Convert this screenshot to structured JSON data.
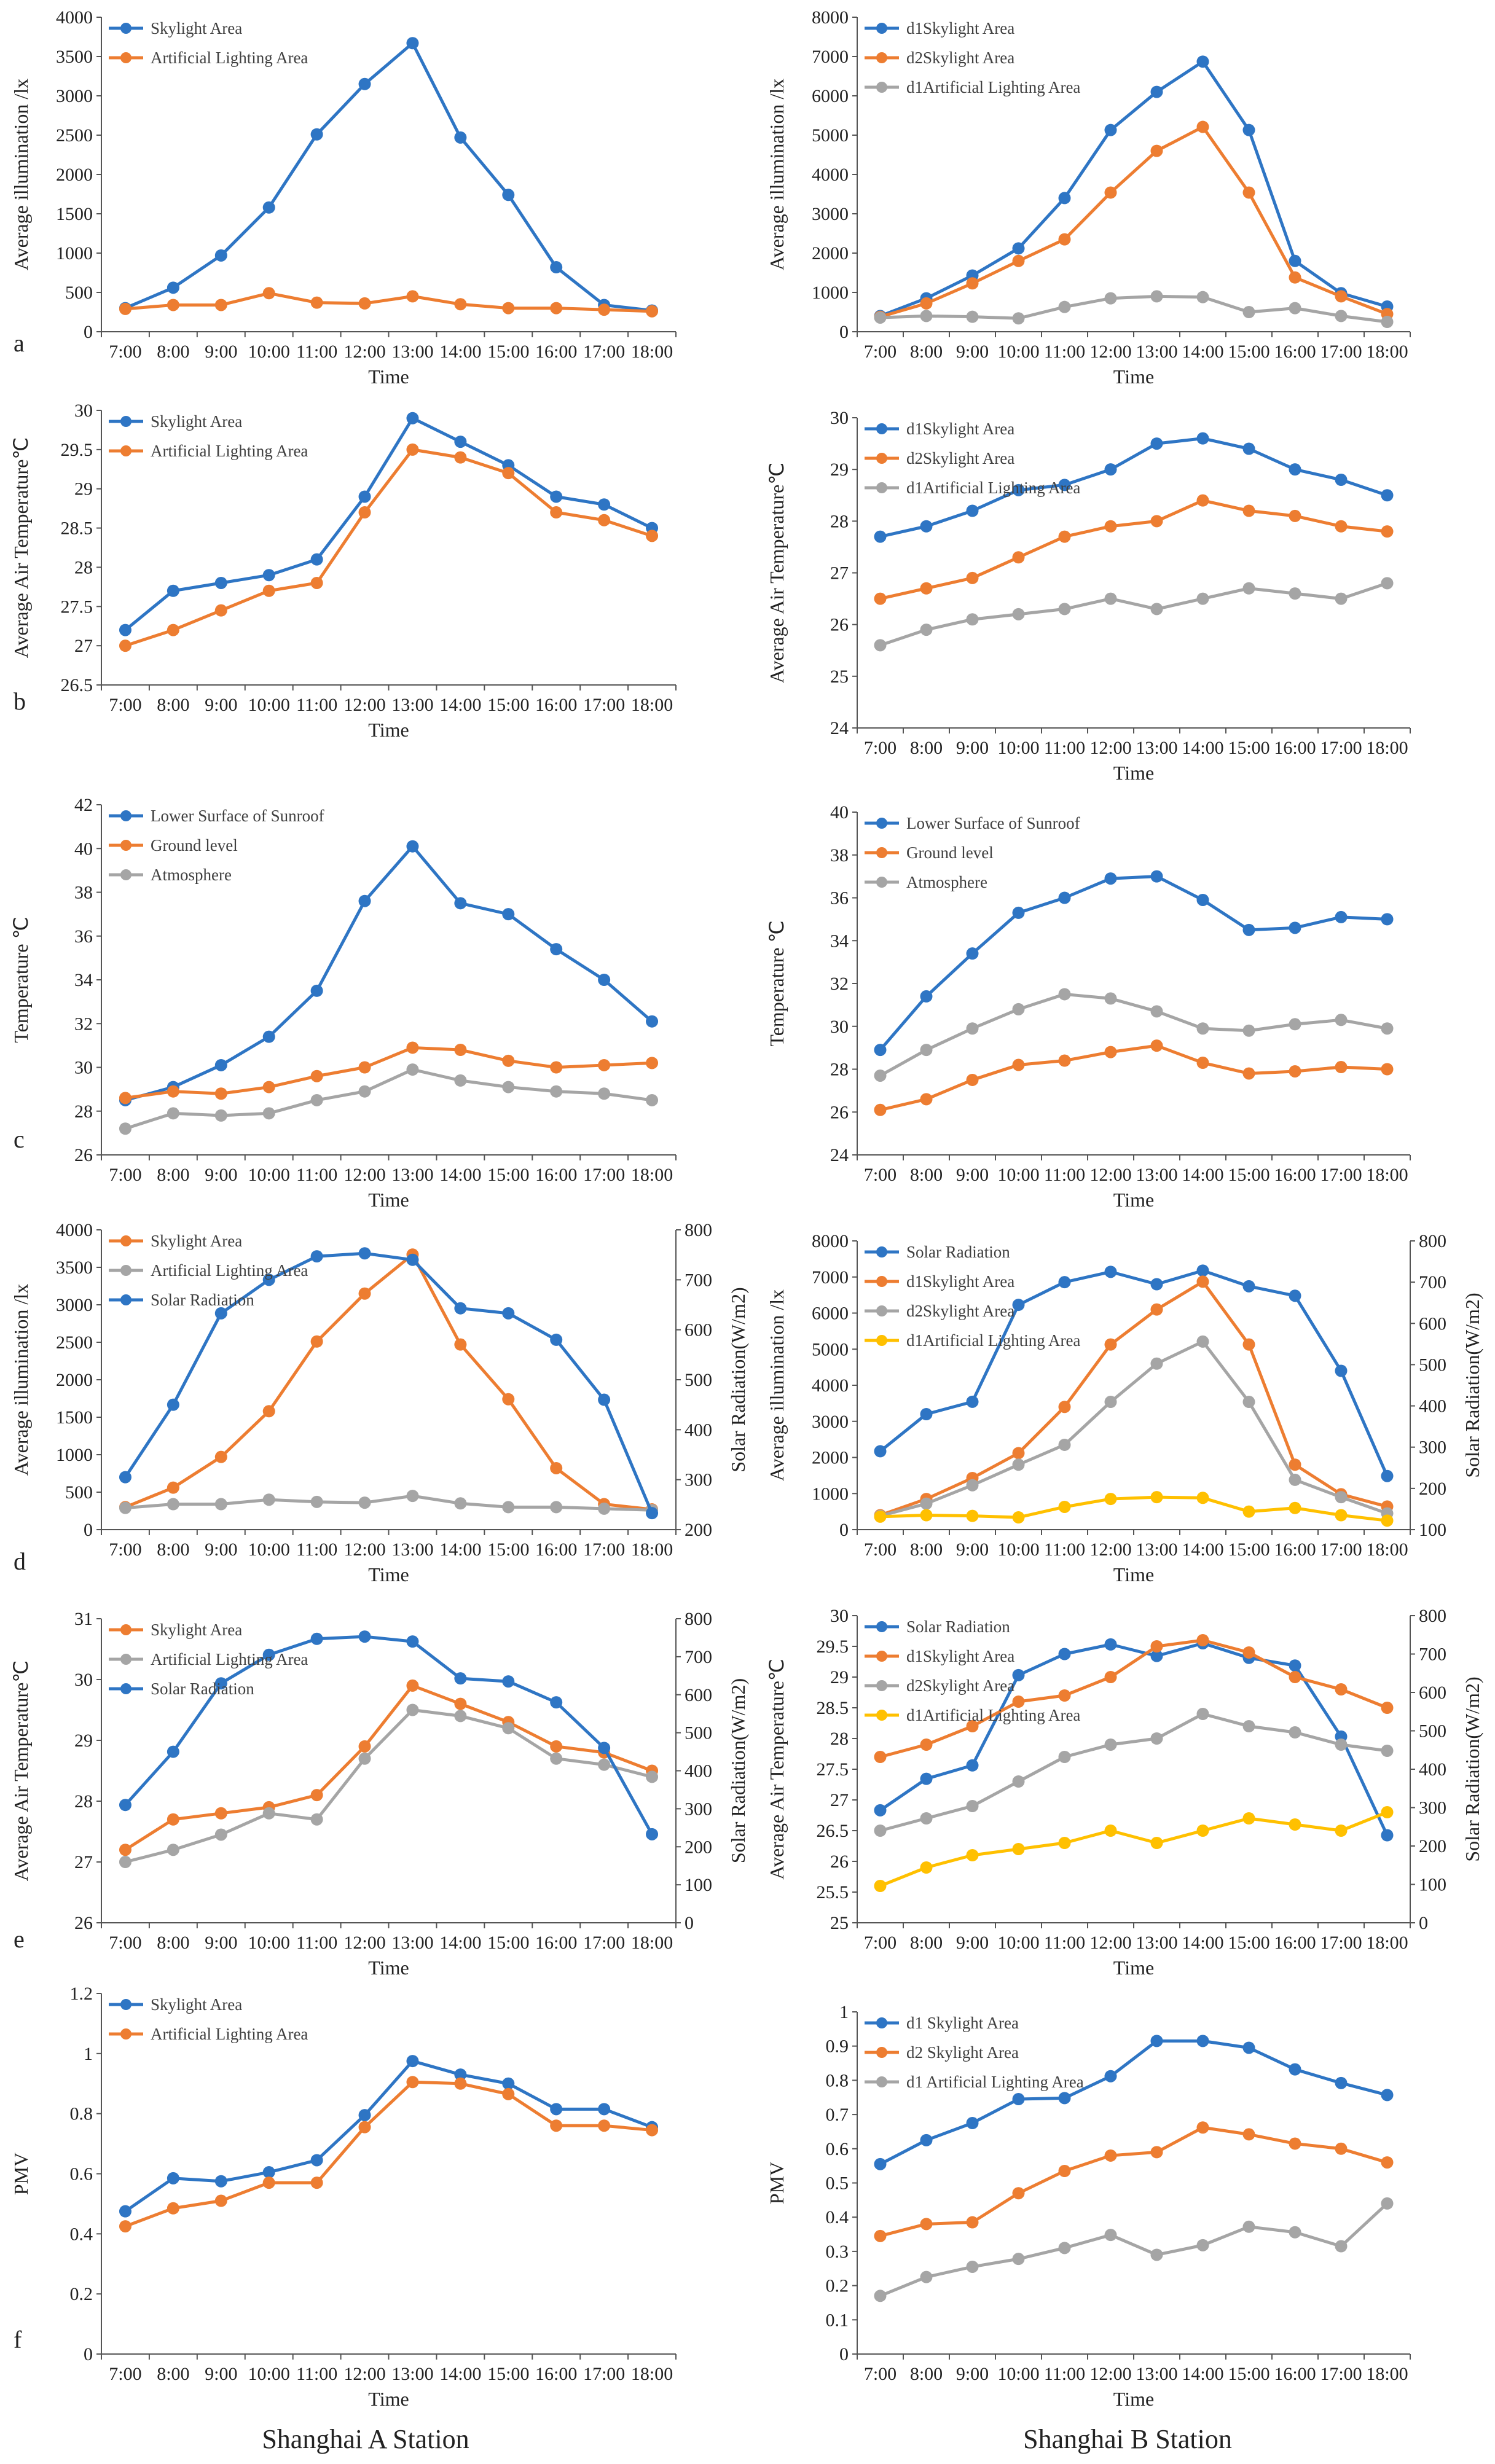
{
  "figure": {
    "captions": {
      "left": "Shanghai A Station",
      "right": "Shanghai B Station"
    },
    "x_categories": [
      "7:00",
      "8:00",
      "9:00",
      "10:00",
      "11:00",
      "12:00",
      "13:00",
      "14:00",
      "15:00",
      "16:00",
      "17:00",
      "18:00"
    ],
    "colors": {
      "blue": "#2E75C4",
      "orange": "#ED7D31",
      "gray": "#A5A5A5",
      "yellow": "#FFC000"
    }
  },
  "chart_data": [
    {
      "id": "a-left",
      "panel_letter": "a",
      "type": "line",
      "xlabel": "Time",
      "ylabel": "Average illumination /lx",
      "ylim": [
        0,
        4000
      ],
      "yticks": [
        0,
        500,
        1000,
        1500,
        2000,
        2500,
        3000,
        3500,
        4000
      ],
      "legend_position": "top-left",
      "series": [
        {
          "name": "Skylight Area",
          "color": "blue",
          "values": [
            300,
            560,
            970,
            1580,
            2510,
            3150,
            3670,
            2470,
            1740,
            820,
            340,
            270
          ]
        },
        {
          "name": "Artificial Lighting Area",
          "color": "orange",
          "values": [
            290,
            340,
            340,
            490,
            370,
            360,
            450,
            350,
            300,
            300,
            280,
            260
          ]
        }
      ]
    },
    {
      "id": "a-right",
      "type": "line",
      "xlabel": "Time",
      "ylabel": "Average illumination /lx",
      "ylim": [
        0,
        8000
      ],
      "yticks": [
        0,
        1000,
        2000,
        3000,
        4000,
        5000,
        6000,
        7000,
        8000
      ],
      "legend_position": "top-left",
      "series": [
        {
          "name": "d1Skylight Area",
          "color": "blue",
          "values": [
            400,
            850,
            1430,
            2120,
            3400,
            5130,
            6100,
            6870,
            5130,
            1800,
            980,
            640
          ]
        },
        {
          "name": "d2Skylight Area",
          "color": "orange",
          "values": [
            380,
            720,
            1230,
            1800,
            2350,
            3540,
            4600,
            5210,
            3540,
            1380,
            900,
            450
          ]
        },
        {
          "name": "d1Artificial Lighting Area",
          "color": "gray",
          "values": [
            360,
            400,
            380,
            340,
            630,
            850,
            900,
            880,
            500,
            600,
            400,
            250
          ]
        }
      ]
    },
    {
      "id": "b-left",
      "panel_letter": "b",
      "type": "line",
      "xlabel": "Time",
      "ylabel": "Average Air Temperature℃",
      "ylim": [
        26.5,
        30
      ],
      "yticks": [
        26.5,
        27,
        27.5,
        28,
        28.5,
        29,
        29.5,
        30
      ],
      "legend_position": "top-left",
      "series": [
        {
          "name": "Skylight Area",
          "color": "blue",
          "values": [
            27.2,
            27.7,
            27.8,
            27.9,
            28.1,
            28.9,
            29.9,
            29.6,
            29.3,
            28.9,
            28.8,
            28.5
          ]
        },
        {
          "name": "Artificial Lighting Area",
          "color": "orange",
          "values": [
            27.0,
            27.2,
            27.45,
            27.7,
            27.8,
            28.7,
            29.5,
            29.4,
            29.2,
            28.7,
            28.6,
            28.4
          ]
        }
      ]
    },
    {
      "id": "b-right",
      "type": "line",
      "xlabel": "Time",
      "ylabel": "Average Air Temperature℃",
      "ylim": [
        24,
        30
      ],
      "yticks": [
        24,
        25,
        26,
        27,
        28,
        29,
        30
      ],
      "legend_position": "top-left",
      "series": [
        {
          "name": "d1Skylight Area",
          "color": "blue",
          "values": [
            27.7,
            27.9,
            28.2,
            28.6,
            28.7,
            29.0,
            29.5,
            29.6,
            29.4,
            29.0,
            28.8,
            28.5
          ]
        },
        {
          "name": "d2Skylight Area",
          "color": "orange",
          "values": [
            26.5,
            26.7,
            26.9,
            27.3,
            27.7,
            27.9,
            28.0,
            28.4,
            28.2,
            28.1,
            27.9,
            27.8
          ]
        },
        {
          "name": "d1Artificial Lighting Area",
          "color": "gray",
          "values": [
            25.6,
            25.9,
            26.1,
            26.2,
            26.3,
            26.5,
            26.3,
            26.5,
            26.7,
            26.6,
            26.5,
            26.8
          ]
        }
      ]
    },
    {
      "id": "c-left",
      "panel_letter": "c",
      "type": "line",
      "xlabel": "Time",
      "ylabel": "Temperature ℃",
      "ylim": [
        26,
        42
      ],
      "yticks": [
        26,
        28,
        30,
        32,
        34,
        36,
        38,
        40,
        42
      ],
      "legend_position": "top-left",
      "series": [
        {
          "name": "Lower Surface of Sunroof",
          "color": "blue",
          "values": [
            28.5,
            29.1,
            30.1,
            31.4,
            33.5,
            37.6,
            40.1,
            37.5,
            37.0,
            35.4,
            34.0,
            32.1
          ]
        },
        {
          "name": "Ground level",
          "color": "orange",
          "values": [
            28.6,
            28.9,
            28.8,
            29.1,
            29.6,
            30.0,
            30.9,
            30.8,
            30.3,
            30.0,
            30.1,
            30.2
          ]
        },
        {
          "name": "Atmosphere",
          "color": "gray",
          "values": [
            27.2,
            27.9,
            27.8,
            27.9,
            28.5,
            28.9,
            29.9,
            29.4,
            29.1,
            28.9,
            28.8,
            28.5
          ]
        }
      ]
    },
    {
      "id": "c-right",
      "type": "line",
      "xlabel": "Time",
      "ylabel": "Temperature ℃",
      "ylim": [
        24,
        40
      ],
      "yticks": [
        24,
        26,
        28,
        30,
        32,
        34,
        36,
        38,
        40
      ],
      "legend_position": "top-left",
      "series": [
        {
          "name": "Lower Surface of Sunroof",
          "color": "blue",
          "values": [
            28.9,
            31.4,
            33.4,
            35.3,
            36.0,
            36.9,
            37.0,
            35.9,
            34.5,
            34.6,
            35.1,
            35.0
          ]
        },
        {
          "name": "Ground level",
          "color": "orange",
          "values": [
            26.1,
            26.6,
            27.5,
            28.2,
            28.4,
            28.8,
            29.1,
            28.3,
            27.8,
            27.9,
            28.1,
            28.0
          ]
        },
        {
          "name": "Atmosphere",
          "color": "gray",
          "values": [
            27.7,
            28.9,
            29.9,
            30.8,
            31.5,
            31.3,
            30.7,
            29.9,
            29.8,
            30.1,
            30.3,
            29.9
          ]
        }
      ]
    },
    {
      "id": "d-left",
      "panel_letter": "d",
      "type": "line",
      "xlabel": "Time",
      "ylabel": "Average illumination /lx",
      "y2label": "Solar Radiation(W/m2)",
      "ylim": [
        0,
        4000
      ],
      "yticks": [
        0,
        500,
        1000,
        1500,
        2000,
        2500,
        3000,
        3500,
        4000
      ],
      "y2lim": [
        200,
        800
      ],
      "y2ticks": [
        200,
        300,
        400,
        500,
        600,
        700,
        800
      ],
      "legend_position": "top-left",
      "series": [
        {
          "name": "Skylight Area",
          "color": "orange",
          "axis": "left",
          "values": [
            300,
            560,
            970,
            1580,
            2510,
            3150,
            3670,
            2470,
            1740,
            820,
            340,
            270
          ]
        },
        {
          "name": "Artificial Lighting Area",
          "color": "gray",
          "axis": "left",
          "values": [
            290,
            340,
            340,
            400,
            370,
            360,
            450,
            350,
            300,
            300,
            280,
            260
          ]
        },
        {
          "name": "Solar Radiation",
          "color": "blue",
          "axis": "right",
          "values": [
            305,
            450,
            633,
            700,
            747,
            753,
            740,
            643,
            633,
            580,
            460,
            233
          ]
        }
      ]
    },
    {
      "id": "d-right",
      "type": "line",
      "xlabel": "Time",
      "ylabel": "Average illumination /lx",
      "y2label": "Solar Radiation(W/m2)",
      "ylim": [
        0,
        8000
      ],
      "yticks": [
        0,
        1000,
        2000,
        3000,
        4000,
        5000,
        6000,
        7000,
        8000
      ],
      "y2lim": [
        100,
        800
      ],
      "y2ticks": [
        100,
        200,
        300,
        400,
        500,
        600,
        700,
        800
      ],
      "legend_position": "top-left",
      "series": [
        {
          "name": "Solar Radiation",
          "color": "blue",
          "axis": "right",
          "values": [
            290,
            380,
            410,
            645,
            700,
            725,
            695,
            728,
            690,
            667,
            485,
            230
          ]
        },
        {
          "name": "d1Skylight Area",
          "color": "orange",
          "axis": "left",
          "values": [
            400,
            850,
            1430,
            2120,
            3400,
            5130,
            6100,
            6870,
            5130,
            1800,
            980,
            640
          ]
        },
        {
          "name": "d2Skylight Area",
          "color": "gray",
          "axis": "left",
          "values": [
            380,
            720,
            1230,
            1800,
            2350,
            3540,
            4600,
            5210,
            3540,
            1380,
            900,
            450
          ]
        },
        {
          "name": "d1Artificial Lighting Area",
          "color": "yellow",
          "axis": "left",
          "values": [
            360,
            400,
            380,
            340,
            630,
            850,
            900,
            880,
            500,
            600,
            400,
            250
          ]
        }
      ]
    },
    {
      "id": "e-left",
      "panel_letter": "e",
      "type": "line",
      "xlabel": "Time",
      "ylabel": "Average Air Temperature℃",
      "y2label": "Solar Radiation(W/m2)",
      "ylim": [
        26,
        31
      ],
      "yticks": [
        26,
        27,
        28,
        29,
        30,
        31
      ],
      "y2lim": [
        0,
        800
      ],
      "y2ticks": [
        0,
        100,
        200,
        300,
        400,
        500,
        600,
        700,
        800
      ],
      "legend_position": "top-left",
      "series": [
        {
          "name": "Skylight Area",
          "color": "orange",
          "axis": "left",
          "values": [
            27.2,
            27.7,
            27.8,
            27.9,
            28.1,
            28.9,
            29.9,
            29.6,
            29.3,
            28.9,
            28.8,
            28.5
          ]
        },
        {
          "name": "Artificial Lighting Area",
          "color": "gray",
          "axis": "left",
          "values": [
            27.0,
            27.2,
            27.45,
            27.8,
            27.7,
            28.7,
            29.5,
            29.4,
            29.2,
            28.7,
            28.6,
            28.4
          ]
        },
        {
          "name": "Solar Radiation",
          "color": "blue",
          "axis": "right",
          "values": [
            310,
            450,
            630,
            705,
            747,
            753,
            740,
            643,
            635,
            580,
            460,
            233
          ]
        }
      ]
    },
    {
      "id": "e-right",
      "type": "line",
      "xlabel": "Time",
      "ylabel": "Average Air Temperature℃",
      "y2label": "Solar Radiation(W/m2)",
      "ylim": [
        25,
        30
      ],
      "yticks": [
        25,
        25.5,
        26,
        26.5,
        27,
        27.5,
        28,
        28.5,
        29,
        29.5,
        30
      ],
      "y2lim": [
        0,
        800
      ],
      "y2ticks": [
        0,
        100,
        200,
        300,
        400,
        500,
        600,
        700,
        800
      ],
      "legend_position": "top-left",
      "series": [
        {
          "name": "Solar Radiation",
          "color": "blue",
          "axis": "right",
          "values": [
            293,
            375,
            410,
            645,
            700,
            725,
            695,
            728,
            690,
            670,
            485,
            228
          ]
        },
        {
          "name": "d1Skylight Area",
          "color": "orange",
          "axis": "left",
          "values": [
            27.7,
            27.9,
            28.2,
            28.6,
            28.7,
            29.0,
            29.5,
            29.6,
            29.4,
            29.0,
            28.8,
            28.5
          ]
        },
        {
          "name": "d2Skylight Area",
          "color": "gray",
          "axis": "left",
          "values": [
            26.5,
            26.7,
            26.9,
            27.3,
            27.7,
            27.9,
            28.0,
            28.4,
            28.2,
            28.1,
            27.9,
            27.8
          ]
        },
        {
          "name": "d1Artificial Lighting Area",
          "color": "yellow",
          "axis": "left",
          "values": [
            25.6,
            25.9,
            26.1,
            26.2,
            26.3,
            26.5,
            26.3,
            26.5,
            26.7,
            26.6,
            26.5,
            26.8
          ]
        }
      ]
    },
    {
      "id": "f-left",
      "panel_letter": "f",
      "type": "line",
      "xlabel": "Time",
      "ylabel": "PMV",
      "ylim": [
        0,
        1.2
      ],
      "yticks": [
        0,
        0.2,
        0.4,
        0.6,
        0.8,
        1,
        1.2
      ],
      "legend_position": "top-left",
      "series": [
        {
          "name": "Skylight Area",
          "color": "blue",
          "values": [
            0.475,
            0.585,
            0.575,
            0.605,
            0.645,
            0.795,
            0.975,
            0.93,
            0.9,
            0.815,
            0.815,
            0.755
          ]
        },
        {
          "name": "Artificial Lighting Area",
          "color": "orange",
          "values": [
            0.425,
            0.485,
            0.51,
            0.57,
            0.57,
            0.755,
            0.905,
            0.9,
            0.865,
            0.76,
            0.76,
            0.745
          ]
        }
      ]
    },
    {
      "id": "f-right",
      "type": "line",
      "xlabel": "Time",
      "ylabel": "PMV",
      "ylim": [
        0,
        1
      ],
      "yticks": [
        0,
        0.1,
        0.2,
        0.3,
        0.4,
        0.5,
        0.6,
        0.7,
        0.8,
        0.9,
        1
      ],
      "legend_position": "top-left",
      "series": [
        {
          "name": "d1 Skylight Area",
          "color": "blue",
          "values": [
            0.555,
            0.625,
            0.675,
            0.745,
            0.748,
            0.812,
            0.915,
            0.915,
            0.895,
            0.832,
            0.792,
            0.757
          ]
        },
        {
          "name": "d2 Skylight Area",
          "color": "orange",
          "values": [
            0.345,
            0.38,
            0.385,
            0.47,
            0.535,
            0.58,
            0.59,
            0.662,
            0.642,
            0.615,
            0.6,
            0.56
          ]
        },
        {
          "name": "d1 Artificial Lighting Area",
          "color": "gray",
          "values": [
            0.17,
            0.225,
            0.255,
            0.278,
            0.31,
            0.348,
            0.29,
            0.318,
            0.372,
            0.356,
            0.315,
            0.44
          ]
        }
      ]
    }
  ]
}
